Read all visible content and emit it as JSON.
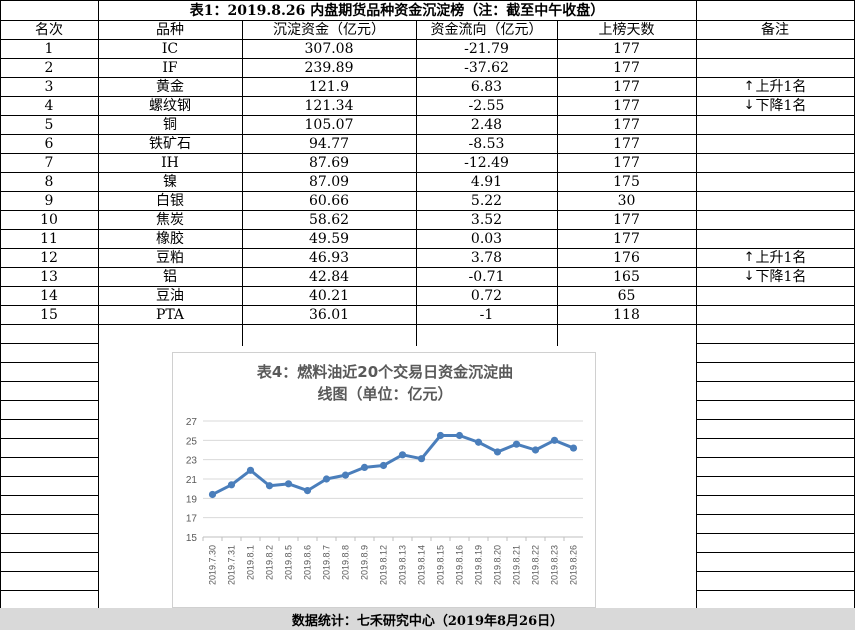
{
  "title": "表1：2019.8.26 内盘期货品种资金沉淀榜（注：截至中午收盘）",
  "headers": [
    "名次",
    "品种",
    "沉淀资金（亿元）",
    "资金流向（亿元）",
    "上榜天数",
    "备注"
  ],
  "rows": [
    {
      "rank": "1",
      "name": "IC",
      "capital": "307.08",
      "flow": "-21.79",
      "days": "177",
      "note": ""
    },
    {
      "rank": "2",
      "name": "IF",
      "capital": "239.89",
      "flow": "-37.62",
      "days": "177",
      "note": ""
    },
    {
      "rank": "3",
      "name": "黄金",
      "capital": "121.9",
      "flow": "6.83",
      "days": "177",
      "note": "上升1名",
      "note_icon": "up-arrow"
    },
    {
      "rank": "4",
      "name": "螺纹钢",
      "capital": "121.34",
      "flow": "-2.55",
      "days": "177",
      "note": "下降1名",
      "note_icon": "down-arrow"
    },
    {
      "rank": "5",
      "name": "铜",
      "capital": "105.07",
      "flow": "2.48",
      "days": "177",
      "note": ""
    },
    {
      "rank": "6",
      "name": "铁矿石",
      "capital": "94.77",
      "flow": "-8.53",
      "days": "177",
      "note": ""
    },
    {
      "rank": "7",
      "name": "IH",
      "capital": "87.69",
      "flow": "-12.49",
      "days": "177",
      "note": ""
    },
    {
      "rank": "8",
      "name": "镍",
      "capital": "87.09",
      "flow": "4.91",
      "days": "175",
      "note": ""
    },
    {
      "rank": "9",
      "name": "白银",
      "capital": "60.66",
      "flow": "5.22",
      "days": "30",
      "note": ""
    },
    {
      "rank": "10",
      "name": "焦炭",
      "capital": "58.62",
      "flow": "3.52",
      "days": "177",
      "note": ""
    },
    {
      "rank": "11",
      "name": "橡胶",
      "capital": "49.59",
      "flow": "0.03",
      "days": "177",
      "note": ""
    },
    {
      "rank": "12",
      "name": "豆粕",
      "capital": "46.93",
      "flow": "3.78",
      "days": "176",
      "note": "上升1名",
      "note_icon": "up-arrow"
    },
    {
      "rank": "13",
      "name": "铝",
      "capital": "42.84",
      "flow": "-0.71",
      "days": "165",
      "note": "下降1名",
      "note_icon": "down-arrow"
    },
    {
      "rank": "14",
      "name": "豆油",
      "capital": "40.21",
      "flow": "0.72",
      "days": "65",
      "note": ""
    },
    {
      "rank": "15",
      "name": "PTA",
      "capital": "36.01",
      "flow": "-1",
      "days": "118",
      "note": ""
    }
  ],
  "footer": "数据统计：七禾研究中心（2019年8月26日）",
  "chart_data": {
    "type": "line",
    "title": "表4：燃料油近20个交易日资金沉淀曲线图（单位：亿元）",
    "title_lines": [
      "表4：燃料油近20个交易日资金沉淀曲",
      "线图（单位：亿元）"
    ],
    "categories": [
      "2019.7.30",
      "2019.7.31",
      "2019.8.1",
      "2019.8.2",
      "2019.8.5",
      "2019.8.6",
      "2019.8.7",
      "2019.8.8",
      "2019.8.9",
      "2019.8.12",
      "2019.8.13",
      "2019.8.14",
      "2019.8.15",
      "2019.8.16",
      "2019.8.19",
      "2019.8.20",
      "2019.8.21",
      "2019.8.22",
      "2019.8.23",
      "2019.8.26"
    ],
    "values": [
      19.4,
      20.4,
      21.9,
      20.3,
      20.5,
      19.8,
      21.0,
      21.4,
      22.2,
      22.4,
      23.5,
      23.1,
      25.5,
      25.5,
      24.8,
      23.8,
      24.6,
      24.0,
      25.0,
      24.2
    ],
    "ylim": [
      15,
      27
    ],
    "yticks": [
      15,
      17,
      19,
      21,
      23,
      25,
      27
    ],
    "grid": true,
    "line_color": "#4a7ebb"
  }
}
